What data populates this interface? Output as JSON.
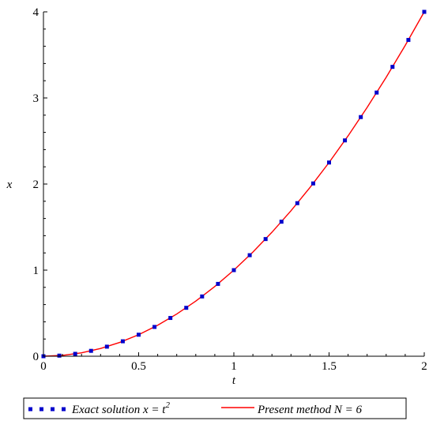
{
  "chart_data": {
    "type": "line",
    "xlabel": "t",
    "ylabel": "x",
    "xlim": [
      0,
      2
    ],
    "ylim": [
      0,
      4
    ],
    "x_ticks": [
      "0",
      "0.5",
      "1",
      "1.5",
      "2"
    ],
    "y_ticks": [
      "0",
      "1",
      "2",
      "3",
      "4"
    ],
    "grid": false,
    "legend_position": "bottom",
    "series": [
      {
        "name": "Exact solution x = t²",
        "legend_prefix": "Exact solution x = t",
        "legend_sup": "2",
        "style": "dotted",
        "color": "#0000cc",
        "x": [
          0,
          0.0833,
          0.1667,
          0.25,
          0.3333,
          0.4167,
          0.5,
          0.5833,
          0.6667,
          0.75,
          0.8333,
          0.9167,
          1.0,
          1.0833,
          1.1667,
          1.25,
          1.3333,
          1.4167,
          1.5,
          1.5833,
          1.6667,
          1.75,
          1.8333,
          1.9167,
          2.0
        ],
        "y": [
          0,
          0.0069,
          0.0278,
          0.0625,
          0.1111,
          0.1736,
          0.25,
          0.3403,
          0.4444,
          0.5625,
          0.6944,
          0.8403,
          1.0,
          1.1736,
          1.3611,
          1.5625,
          1.7778,
          2.0069,
          2.25,
          2.5069,
          2.7778,
          3.0625,
          3.3611,
          3.6736,
          4.0
        ]
      },
      {
        "name": "Present method N = 6",
        "style": "solid",
        "color": "#ff0000",
        "x": [
          0,
          0.1,
          0.2,
          0.3,
          0.4,
          0.5,
          0.6,
          0.7,
          0.8,
          0.9,
          1.0,
          1.1,
          1.2,
          1.3,
          1.4,
          1.5,
          1.6,
          1.7,
          1.8,
          1.9,
          2.0
        ],
        "y": [
          0,
          0.01,
          0.04,
          0.09,
          0.16,
          0.25,
          0.36,
          0.49,
          0.64,
          0.81,
          1.0,
          1.21,
          1.44,
          1.69,
          1.96,
          2.25,
          2.56,
          2.89,
          3.24,
          3.61,
          4.0
        ]
      }
    ]
  }
}
